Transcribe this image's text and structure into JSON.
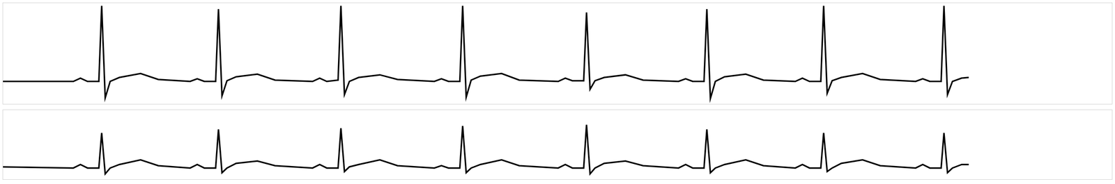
{
  "chart_data": [
    {
      "type": "line",
      "x": [
        0,
        100,
        110,
        120,
        136,
        140,
        145,
        152,
        165,
        195,
        220,
        265,
        275,
        285,
        301,
        305,
        310,
        317,
        330,
        360,
        385,
        438,
        448,
        458,
        474,
        478,
        483,
        490,
        503,
        533,
        558,
        610,
        620,
        630,
        646,
        650,
        655,
        662,
        675,
        705,
        730,
        785,
        795,
        805,
        821,
        825,
        830,
        837,
        850,
        880,
        905,
        955,
        965,
        975,
        991,
        995,
        1000,
        1007,
        1020,
        1050,
        1075,
        1120,
        1130,
        1140,
        1156,
        1160,
        1165,
        1172,
        1185,
        1215,
        1240,
        1290,
        1300,
        1310,
        1326,
        1330,
        1335,
        1342,
        1355,
        1365
      ],
      "series": [
        {
          "color": "#000000",
          "values": [
            0,
            0,
            0.05,
            0,
            0,
            1.15,
            -0.25,
            0,
            0.06,
            0.12,
            0.03,
            0,
            0.04,
            0,
            0,
            1.1,
            -0.22,
            0.01,
            0.07,
            0.11,
            0.02,
            0,
            0.05,
            0,
            0.02,
            1.15,
            -0.2,
            0,
            0.06,
            0.1,
            0.03,
            0,
            0.04,
            0,
            0,
            1.15,
            -0.24,
            0.02,
            0.08,
            0.12,
            0.02,
            0,
            0.05,
            0.01,
            0.01,
            1.05,
            -0.12,
            0.01,
            0.06,
            0.1,
            0.02,
            0,
            0.04,
            0,
            0,
            1.1,
            -0.26,
            0,
            0.07,
            0.11,
            0.02,
            0,
            0.05,
            0,
            0,
            1.15,
            -0.18,
            0.01,
            0.06,
            0.12,
            0.03,
            0,
            0.04,
            0,
            0,
            1.15,
            -0.2,
            0,
            0.05,
            0.06
          ]
        }
      ],
      "xlim": [
        0,
        1568
      ],
      "ylim": [
        -0.35,
        1.2
      ],
      "grid": false,
      "tick_labels": false
    },
    {
      "type": "line",
      "x": [
        0,
        100,
        110,
        120,
        136,
        140,
        145,
        152,
        165,
        195,
        220,
        265,
        275,
        285,
        301,
        305,
        310,
        317,
        330,
        360,
        385,
        438,
        448,
        458,
        474,
        478,
        483,
        490,
        503,
        533,
        558,
        610,
        620,
        630,
        646,
        650,
        655,
        662,
        675,
        705,
        730,
        785,
        795,
        805,
        821,
        825,
        830,
        837,
        850,
        880,
        905,
        955,
        965,
        975,
        991,
        995,
        1000,
        1007,
        1020,
        1050,
        1075,
        1120,
        1130,
        1140,
        1156,
        1160,
        1165,
        1172,
        1185,
        1215,
        1240,
        1290,
        1300,
        1310,
        1326,
        1330,
        1335,
        1342,
        1355,
        1365
      ],
      "series": [
        {
          "color": "#000000",
          "values": [
            0.01,
            0,
            0.03,
            0,
            0,
            0.3,
            -0.05,
            0,
            0.03,
            0.07,
            0.02,
            0,
            0.03,
            0,
            0,
            0.33,
            -0.04,
            0,
            0.04,
            0.06,
            0.02,
            0,
            0.03,
            0,
            0,
            0.34,
            -0.03,
            0.01,
            0.03,
            0.07,
            0.02,
            0,
            0.02,
            0,
            0,
            0.36,
            -0.04,
            0,
            0.03,
            0.07,
            0.02,
            0,
            0.03,
            0,
            0,
            0.37,
            -0.05,
            0,
            0.04,
            0.06,
            0.02,
            0,
            0.03,
            0,
            0,
            0.33,
            -0.04,
            0,
            0.03,
            0.07,
            0.02,
            0,
            0.03,
            0,
            0,
            0.3,
            -0.03,
            0,
            0.04,
            0.07,
            0.02,
            0,
            0.03,
            0,
            0,
            0.3,
            -0.04,
            0,
            0.03,
            0.03
          ]
        }
      ],
      "xlim": [
        0,
        1568
      ],
      "ylim": [
        -0.1,
        0.5
      ],
      "grid": false,
      "tick_labels": false
    }
  ]
}
